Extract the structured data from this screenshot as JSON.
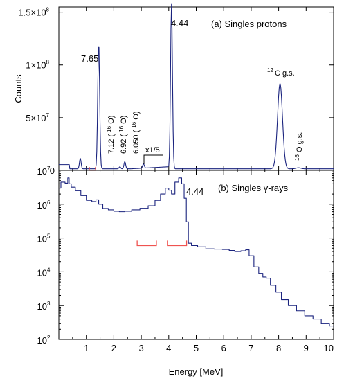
{
  "chart_data": [
    {
      "type": "line",
      "panel_label": "(a) Singles protons",
      "ylabel": "Counts",
      "xlim": [
        0,
        10
      ],
      "ylim": [
        0,
        155000000
      ],
      "y_ticks": [
        {
          "value": 0,
          "mant": "0",
          "exp": ""
        },
        {
          "value": 50000000,
          "mant": "5×10",
          "exp": "7"
        },
        {
          "value": 100000000,
          "mant": "1×10",
          "exp": "8"
        },
        {
          "value": 150000000,
          "mant": "1.5×10",
          "exp": "8"
        }
      ],
      "peaks": [
        {
          "x": 0.78,
          "y": 10000000
        },
        {
          "x": 1.45,
          "y": 120000000
        },
        {
          "x": 2.22,
          "y": 2000000
        },
        {
          "x": 2.4,
          "y": 7000000
        },
        {
          "x": 3.08,
          "y": 4000000
        },
        {
          "x": 4.1,
          "y": 156000000
        },
        {
          "x": 8.05,
          "y": 81000000
        },
        {
          "x": 8.72,
          "y": 1000000
        }
      ],
      "annotations": {
        "peak_765": "7.65",
        "peak_444": "4.44",
        "c12_pre": "12",
        "c12_main": "C g.s.",
        "o16_pre": "16",
        "o16_main": "O g.s.",
        "state_712": "7.12 (",
        "state_692": "6.92 (",
        "state_6050": "6.050 (",
        "o16_iso": "16",
        "o16_sym": "O)",
        "scale": "x1/5"
      }
    },
    {
      "type": "line",
      "panel_label": "(b) Singles γ-rays",
      "peak_label": "4.44",
      "xlabel": "Energy [MeV]",
      "xlim": [
        0,
        10
      ],
      "y_scale": "log",
      "ylim": [
        100,
        10000000
      ],
      "x_ticks": [
        "1",
        "2",
        "3",
        "4",
        "5",
        "6",
        "7",
        "8",
        "9",
        "10"
      ],
      "y_ticks": [
        {
          "value": 100,
          "mant": "10",
          "exp": "2"
        },
        {
          "value": 1000,
          "mant": "10",
          "exp": "3"
        },
        {
          "value": 10000,
          "mant": "10",
          "exp": "4"
        },
        {
          "value": 100000,
          "mant": "10",
          "exp": "5"
        },
        {
          "value": 1000000,
          "mant": "10",
          "exp": "6"
        },
        {
          "value": 10000000,
          "mant": "10",
          "exp": "7"
        }
      ],
      "points": [
        [
          0.0,
          3000000
        ],
        [
          0.15,
          4500000
        ],
        [
          0.3,
          4200000
        ],
        [
          0.35,
          6000000
        ],
        [
          0.4,
          4000000
        ],
        [
          0.5,
          3200000
        ],
        [
          0.7,
          2500000
        ],
        [
          0.9,
          1800000
        ],
        [
          1.1,
          1300000
        ],
        [
          1.3,
          1200000
        ],
        [
          1.4,
          1350000
        ],
        [
          1.5,
          1000000
        ],
        [
          1.7,
          750000
        ],
        [
          1.9,
          680000
        ],
        [
          2.1,
          620000
        ],
        [
          2.3,
          600000
        ],
        [
          2.5,
          620000
        ],
        [
          2.8,
          680000
        ],
        [
          3.1,
          760000
        ],
        [
          3.4,
          900000
        ],
        [
          3.6,
          1300000
        ],
        [
          3.8,
          2000000
        ],
        [
          3.95,
          3000000
        ],
        [
          4.05,
          2600000
        ],
        [
          4.15,
          2000000
        ],
        [
          4.3,
          4500000
        ],
        [
          4.42,
          6000000
        ],
        [
          4.52,
          4000000
        ],
        [
          4.6,
          1500000
        ],
        [
          4.68,
          300000
        ],
        [
          4.75,
          70000
        ],
        [
          4.9,
          60000
        ],
        [
          5.2,
          55000
        ],
        [
          5.5,
          48000
        ],
        [
          5.8,
          47000
        ],
        [
          6.1,
          46000
        ],
        [
          6.3,
          43000
        ],
        [
          6.5,
          40000
        ],
        [
          6.75,
          42000
        ],
        [
          6.85,
          45000
        ],
        [
          7.0,
          30000
        ],
        [
          7.2,
          14000
        ],
        [
          7.35,
          9000
        ],
        [
          7.5,
          7000
        ],
        [
          7.6,
          6500
        ],
        [
          7.8,
          4000
        ],
        [
          8.0,
          2500
        ],
        [
          8.2,
          1500
        ],
        [
          8.5,
          1000
        ],
        [
          8.8,
          700
        ],
        [
          9.1,
          500
        ],
        [
          9.4,
          400
        ],
        [
          9.7,
          300
        ],
        [
          10.0,
          250
        ]
      ],
      "gates": [
        {
          "x1": 2.85,
          "x2": 3.55,
          "y": 60000
        },
        {
          "x1": 3.95,
          "x2": 4.65,
          "y": 60000
        }
      ]
    }
  ]
}
